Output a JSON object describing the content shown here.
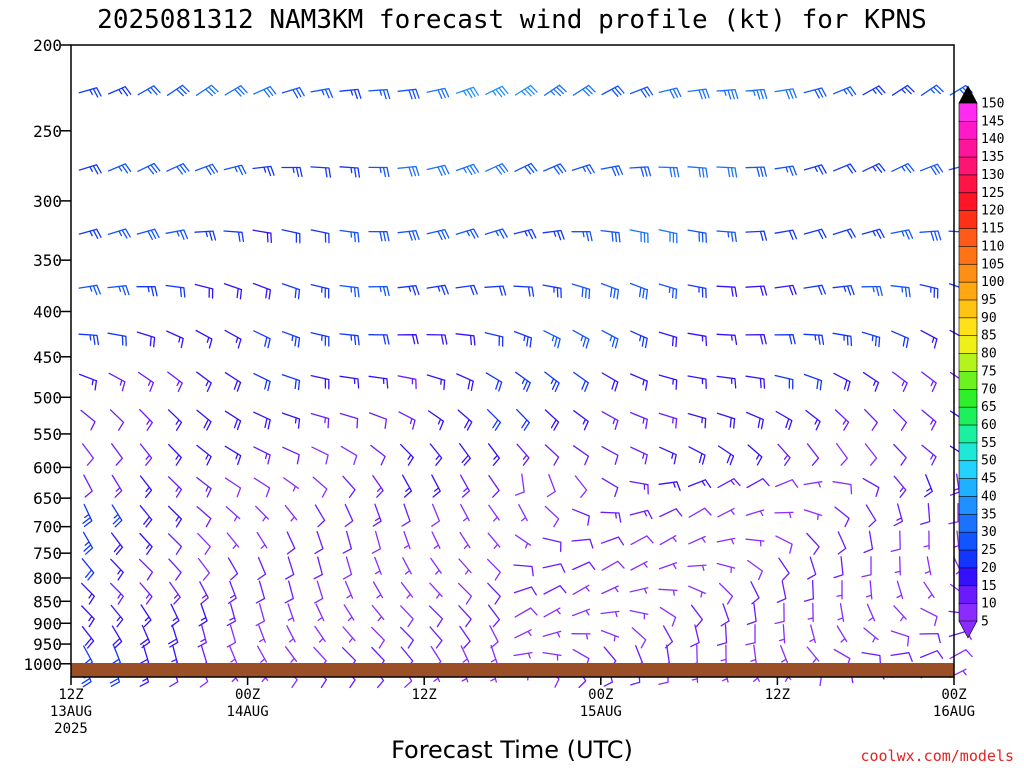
{
  "chart_data": {
    "type": "wind-barb-time-height",
    "title": "2025081312 NAM3KM forecast wind profile (kt) for KPNS",
    "xlabel": "Forecast Time (UTC)",
    "ylabel": "",
    "y_axis": {
      "scale": "log-pressure",
      "range": [
        1035,
        200
      ],
      "tick_labels": [
        "200",
        "250",
        "300",
        "350",
        "400",
        "450",
        "500",
        "550",
        "600",
        "650",
        "700",
        "750",
        "800",
        "850",
        "900",
        "950",
        "1000"
      ]
    },
    "x_axis": {
      "range_hours": [
        0,
        60
      ],
      "ticks": [
        {
          "hour": 0,
          "line1": "12Z",
          "line2": "13AUG",
          "line3": "2025"
        },
        {
          "hour": 12,
          "line1": "00Z",
          "line2": "14AUG",
          "line3": ""
        },
        {
          "hour": 24,
          "line1": "12Z",
          "line2": "",
          "line3": ""
        },
        {
          "hour": 36,
          "line1": "00Z",
          "line2": "15AUG",
          "line3": ""
        },
        {
          "hour": 48,
          "line1": "12Z",
          "line2": "",
          "line3": ""
        },
        {
          "hour": 60,
          "line1": "00Z",
          "line2": "16AUG",
          "line3": ""
        }
      ]
    },
    "barb_pressure_levels": [
      225,
      275,
      325,
      375,
      425,
      475,
      525,
      575,
      625,
      675,
      725,
      775,
      825,
      875,
      925,
      975,
      1025
    ],
    "barb_interval_hours": 2,
    "ground_color": "#9b4f27",
    "colorbar": {
      "units": "kt",
      "labels": [
        "5",
        "10",
        "15",
        "20",
        "25",
        "30",
        "35",
        "40",
        "45",
        "50",
        "55",
        "60",
        "65",
        "70",
        "75",
        "80",
        "85",
        "90",
        "95",
        "100",
        "105",
        "110",
        "115",
        "120",
        "125",
        "130",
        "135",
        "140",
        "145",
        "150"
      ],
      "colors": [
        "#8a2bff",
        "#6b1aff",
        "#3410ff",
        "#1236ff",
        "#1254ff",
        "#1a72ff",
        "#1f90ff",
        "#1fb0ff",
        "#22d2ff",
        "#1ee8d6",
        "#19f0a0",
        "#1eef5c",
        "#2ef02a",
        "#6df21f",
        "#b4f31c",
        "#eef018",
        "#ffe11a",
        "#ffc412",
        "#ffa812",
        "#ff8e14",
        "#ff7315",
        "#ff5a17",
        "#ff3016",
        "#ff1525",
        "#ff1445",
        "#ff1472",
        "#ff149a",
        "#ff19c8",
        "#ff2bf0",
        "#000000"
      ]
    },
    "grid": false
  },
  "credit": "coolwx.com/models"
}
